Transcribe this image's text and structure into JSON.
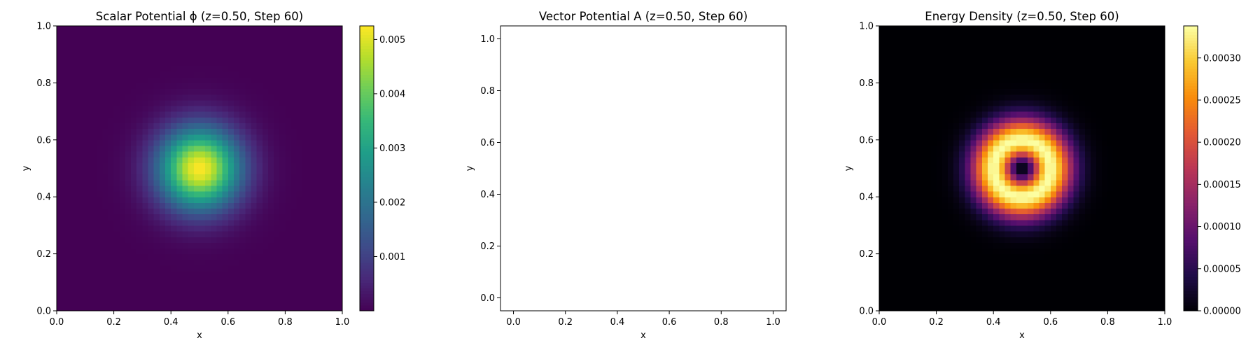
{
  "chart_data": [
    {
      "type": "heatmap",
      "title": "Scalar Potential ϕ (z=0.50, Step 60)",
      "xlabel": "x",
      "ylabel": "y",
      "xlim": [
        0.0,
        1.0
      ],
      "ylim": [
        0.0,
        1.0
      ],
      "xticks": [
        "0.0",
        "0.2",
        "0.4",
        "0.6",
        "0.8",
        "1.0"
      ],
      "yticks": [
        "0.0",
        "0.2",
        "0.4",
        "0.6",
        "0.8",
        "1.0"
      ],
      "colormap": "viridis",
      "field": {
        "shape": "gaussian",
        "center": [
          0.5,
          0.5
        ],
        "sigma": 0.1,
        "peak": 0.00525,
        "grid": 50
      },
      "colorbar": {
        "min": 0.0,
        "max": 0.00525,
        "ticks": [
          0.001,
          0.002,
          0.003,
          0.004,
          0.005
        ],
        "tick_labels": [
          "0.001",
          "0.002",
          "0.003",
          "0.004",
          "0.005"
        ]
      },
      "grid": false
    },
    {
      "type": "scatter",
      "title": "Vector Potential A (z=0.50, Step 60)",
      "xlabel": "x",
      "ylabel": "y",
      "xlim": [
        -0.05,
        1.05
      ],
      "ylim": [
        -0.05,
        1.05
      ],
      "xticks": [
        "0.0",
        "0.2",
        "0.4",
        "0.6",
        "0.8",
        "1.0"
      ],
      "yticks": [
        "0.0",
        "0.2",
        "0.4",
        "0.6",
        "0.8",
        "1.0"
      ],
      "points": [],
      "grid": false
    },
    {
      "type": "heatmap",
      "title": "Energy Density (z=0.50, Step 60)",
      "xlabel": "x",
      "ylabel": "y",
      "xlim": [
        0.0,
        1.0
      ],
      "ylim": [
        0.0,
        1.0
      ],
      "xticks": [
        "0.0",
        "0.2",
        "0.4",
        "0.6",
        "0.8",
        "1.0"
      ],
      "yticks": [
        "0.0",
        "0.2",
        "0.4",
        "0.6",
        "0.8",
        "1.0"
      ],
      "colormap": "inferno",
      "field": {
        "shape": "ring",
        "center": [
          0.5,
          0.5
        ],
        "sigma": 0.1,
        "peak": 0.000338,
        "grid": 50
      },
      "colorbar": {
        "min": 0.0,
        "max": 0.000338,
        "ticks": [
          0.0,
          5e-05,
          0.0001,
          0.00015,
          0.0002,
          0.00025,
          0.0003
        ],
        "tick_labels": [
          "0.00000",
          "0.00005",
          "0.00010",
          "0.00015",
          "0.00020",
          "0.00025",
          "0.00030"
        ]
      },
      "grid": false
    }
  ]
}
